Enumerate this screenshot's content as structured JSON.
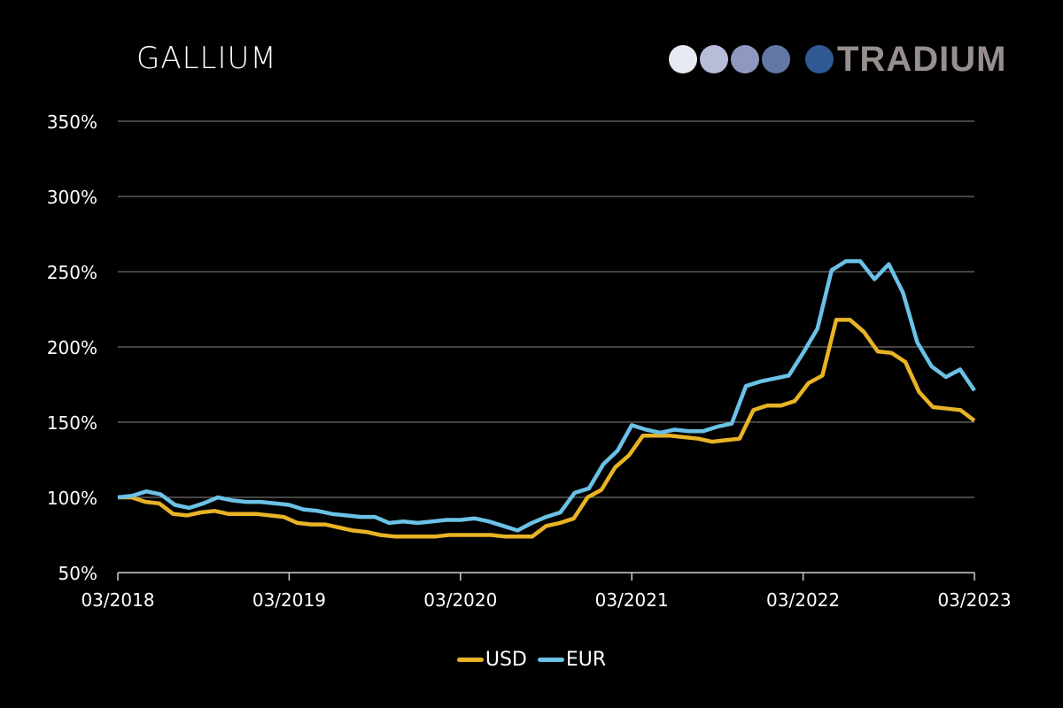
{
  "header": {
    "title": "GALLIUM"
  },
  "logo": {
    "text": "TRADIUM",
    "dots": [
      "#e6e8f2",
      "#b9bcd9",
      "#8e98c0",
      "#6377a7",
      "#2f5a93"
    ]
  },
  "legend": [
    {
      "label": "USD",
      "color": "#e8b325"
    },
    {
      "label": "EUR",
      "color": "#6bc1e6"
    }
  ],
  "chart_data": {
    "type": "line",
    "title": "GALLIUM",
    "xlabel": "",
    "ylabel": "",
    "ylim": [
      50,
      350
    ],
    "yticks": [
      "50%",
      "100%",
      "150%",
      "200%",
      "250%",
      "300%",
      "350%"
    ],
    "xticks": [
      "03/2018",
      "03/2019",
      "03/2020",
      "03/2021",
      "03/2022",
      "03/2023"
    ],
    "grid": true,
    "legend_position": "bottom",
    "x_start": "03/2018",
    "x_end": "03/2023",
    "series": [
      {
        "name": "USD",
        "color": "#e8b325",
        "values": [
          100,
          100,
          97,
          96,
          89,
          88,
          90,
          91,
          89,
          89,
          89,
          88,
          87,
          83,
          82,
          82,
          80,
          78,
          77,
          75,
          74,
          74,
          74,
          74,
          75,
          75,
          75,
          75,
          74,
          74,
          74,
          81,
          83,
          86,
          100,
          105,
          120,
          128,
          141,
          141,
          141,
          140,
          139,
          137,
          138,
          139,
          158,
          161,
          161,
          164,
          176,
          181,
          218,
          218,
          210,
          197,
          196,
          190,
          170,
          160,
          159,
          158,
          151
        ]
      },
      {
        "name": "EUR",
        "color": "#6bc1e6",
        "values": [
          100,
          101,
          104,
          102,
          95,
          93,
          96,
          100,
          98,
          97,
          97,
          96,
          95,
          92,
          91,
          89,
          88,
          87,
          87,
          83,
          84,
          83,
          84,
          85,
          85,
          86,
          84,
          81,
          78,
          83,
          87,
          90,
          103,
          106,
          122,
          131,
          148,
          145,
          143,
          145,
          144,
          144,
          147,
          149,
          174,
          177,
          179,
          181,
          196,
          212,
          251,
          257,
          257,
          245,
          255,
          236,
          203,
          187,
          180,
          185,
          171
        ]
      }
    ]
  }
}
